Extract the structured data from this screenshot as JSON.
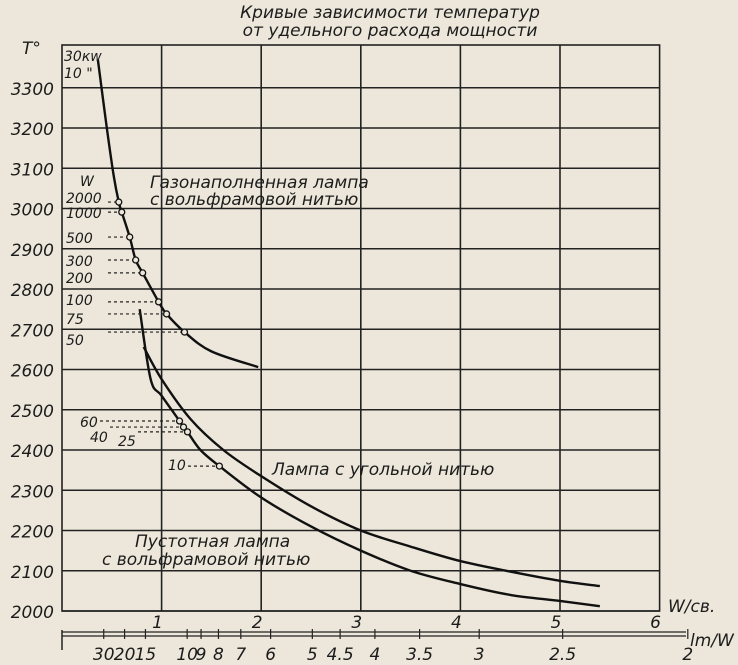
{
  "chart_data": {
    "type": "line",
    "title": [
      "Кривые зависимости температур",
      "от удельного расхода мощности"
    ],
    "ylabel": "T°",
    "xlabel": "W/св.",
    "x2label": "lm/W",
    "xlim": [
      0,
      6
    ],
    "ylim": [
      2000,
      3400
    ],
    "grid": true,
    "x_ticks": [
      1,
      2,
      3,
      4,
      5,
      6
    ],
    "y_ticks": [
      2000,
      2100,
      2200,
      2300,
      2400,
      2500,
      2600,
      2700,
      2800,
      2900,
      3000,
      3100,
      3200,
      3300
    ],
    "x2_ticks": [
      {
        "label": "30",
        "lmw": 30
      },
      {
        "label": "20",
        "lmw": 20
      },
      {
        "label": "15",
        "lmw": 15
      },
      {
        "label": "10",
        "lmw": 10
      },
      {
        "label": "9",
        "lmw": 9
      },
      {
        "label": "8",
        "lmw": 8
      },
      {
        "label": "7",
        "lmw": 7
      },
      {
        "label": "6",
        "lmw": 6
      },
      {
        "label": "5",
        "lmw": 5
      },
      {
        "label": "4.5",
        "lmw": 4.5
      },
      {
        "label": "4",
        "lmw": 4
      },
      {
        "label": "3.5",
        "lmw": 3.5
      },
      {
        "label": "3",
        "lmw": 3
      },
      {
        "label": "2.5",
        "lmw": 2.5
      },
      {
        "label": "2",
        "lmw": 2
      }
    ],
    "series": [
      {
        "name": "Газонаполненная лампа с вольфрамовой нитью",
        "label_lines": [
          "Газонаполненная лампа",
          "с вольфрамовой нитью"
        ],
        "points": [
          [
            0.36,
            3370
          ],
          [
            0.45,
            3200
          ],
          [
            0.52,
            3080
          ],
          [
            0.57,
            3016
          ],
          [
            0.6,
            2991
          ],
          [
            0.68,
            2929
          ],
          [
            0.74,
            2872
          ],
          [
            0.81,
            2840
          ],
          [
            0.97,
            2768
          ],
          [
            1.05,
            2738
          ],
          [
            1.23,
            2693
          ],
          [
            1.5,
            2645
          ],
          [
            1.97,
            2606
          ]
        ],
        "marked": [
          {
            "label": "2000",
            "x": 0.57,
            "y": 3016
          },
          {
            "label": "1000",
            "x": 0.6,
            "y": 2991
          },
          {
            "label": "500",
            "x": 0.68,
            "y": 2929
          },
          {
            "label": "300",
            "x": 0.74,
            "y": 2872
          },
          {
            "label": "200",
            "x": 0.81,
            "y": 2840
          },
          {
            "label": "100",
            "x": 0.97,
            "y": 2768
          },
          {
            "label": "75",
            "x": 1.05,
            "y": 2738
          },
          {
            "label": "50",
            "x": 1.23,
            "y": 2693
          }
        ],
        "top_labels": [
          "30кw",
          "10 \""
        ],
        "unit_label": "W"
      },
      {
        "name": "Пустотная лампа с вольфрамовой нитью",
        "label_lines": [
          "Пустотная лампа",
          "с вольфрамовой нитью"
        ],
        "points": [
          [
            0.78,
            2750
          ],
          [
            0.89,
            2576
          ],
          [
            1.0,
            2535
          ],
          [
            1.18,
            2472
          ],
          [
            1.22,
            2457
          ],
          [
            1.26,
            2445
          ],
          [
            1.39,
            2400
          ],
          [
            1.58,
            2360
          ],
          [
            2,
            2282
          ],
          [
            2.5,
            2210
          ],
          [
            3,
            2150
          ],
          [
            3.5,
            2100
          ],
          [
            4,
            2067
          ],
          [
            4.5,
            2040
          ],
          [
            5,
            2025
          ],
          [
            5.4,
            2012
          ]
        ],
        "marked": [
          {
            "label": "60",
            "x": 1.18,
            "y": 2472
          },
          {
            "label": "40",
            "x": 1.22,
            "y": 2457
          },
          {
            "label": "25",
            "x": 1.26,
            "y": 2445
          },
          {
            "label": "10",
            "x": 1.58,
            "y": 2360
          }
        ]
      },
      {
        "name": "Лампа с угольной нитью",
        "label_lines": [
          "Лампа с угольной нитью"
        ],
        "points": [
          [
            0.82,
            2656
          ],
          [
            1.0,
            2576
          ],
          [
            1.29,
            2477
          ],
          [
            1.62,
            2400
          ],
          [
            2,
            2335
          ],
          [
            2.5,
            2260
          ],
          [
            3,
            2200
          ],
          [
            3.5,
            2160
          ],
          [
            4,
            2124
          ],
          [
            4.5,
            2098
          ],
          [
            5,
            2075
          ],
          [
            5.4,
            2062
          ]
        ]
      }
    ]
  }
}
